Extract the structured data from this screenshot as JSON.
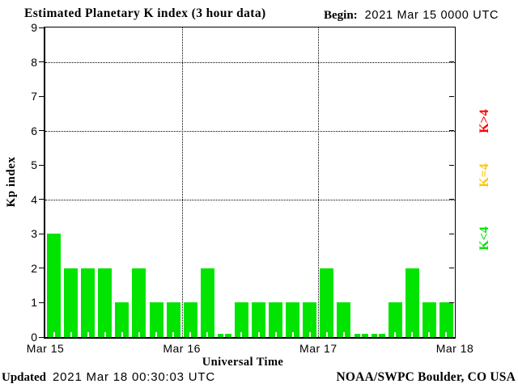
{
  "header": {
    "title": "Estimated Planetary K index (3 hour data)",
    "begin_label": "Begin:",
    "begin_value": "2021 Mar 15 0000 UTC"
  },
  "chart_data": {
    "type": "bar",
    "title": "Estimated Planetary K index (3 hour data)",
    "begin": "2021 Mar 15 0000 UTC",
    "xlabel": "Universal Time",
    "ylabel": "Kp index",
    "ylim": [
      0,
      9
    ],
    "yticks": [
      0,
      1,
      2,
      3,
      4,
      5,
      6,
      7,
      8,
      9
    ],
    "grid_y": [
      4,
      6,
      8
    ],
    "bin_hours": 3,
    "bars_per_day": 8,
    "x_day_labels": [
      "Mar 15",
      "Mar 16",
      "Mar 17",
      "Mar 18"
    ],
    "values": [
      3,
      2,
      2,
      2,
      1,
      2,
      1,
      1,
      1,
      2,
      0,
      1,
      1,
      1,
      1,
      1,
      2,
      1,
      0,
      0,
      1,
      2,
      1,
      1
    ],
    "series": [
      {
        "name": "Mar 15",
        "values": [
          3,
          2,
          2,
          2,
          1,
          2,
          1,
          1
        ]
      },
      {
        "name": "Mar 16",
        "values": [
          1,
          2,
          0,
          1,
          1,
          1,
          1,
          1
        ]
      },
      {
        "name": "Mar 17",
        "values": [
          2,
          1,
          0,
          0,
          1,
          2,
          1,
          1
        ]
      }
    ],
    "color_rules": {
      "k_below_4": "#00e400",
      "k_equal_4": "#ffc800",
      "k_above_4": "#ff0000"
    },
    "grid": "dotted",
    "legend_position": "right"
  },
  "legend": {
    "items": [
      {
        "label": "K>4",
        "color": "#ff0000"
      },
      {
        "label": "K=4",
        "color": "#ffc800"
      },
      {
        "label": "K<4",
        "color": "#00e400"
      }
    ]
  },
  "footer": {
    "updated_label": "Updated",
    "updated_value": "2021 Mar 18 00:30:03 UTC",
    "source": "NOAA/SWPC Boulder, CO USA"
  },
  "colors": {
    "background": "#ffffff",
    "axis": "#000000",
    "bar_green": "#00e400"
  }
}
